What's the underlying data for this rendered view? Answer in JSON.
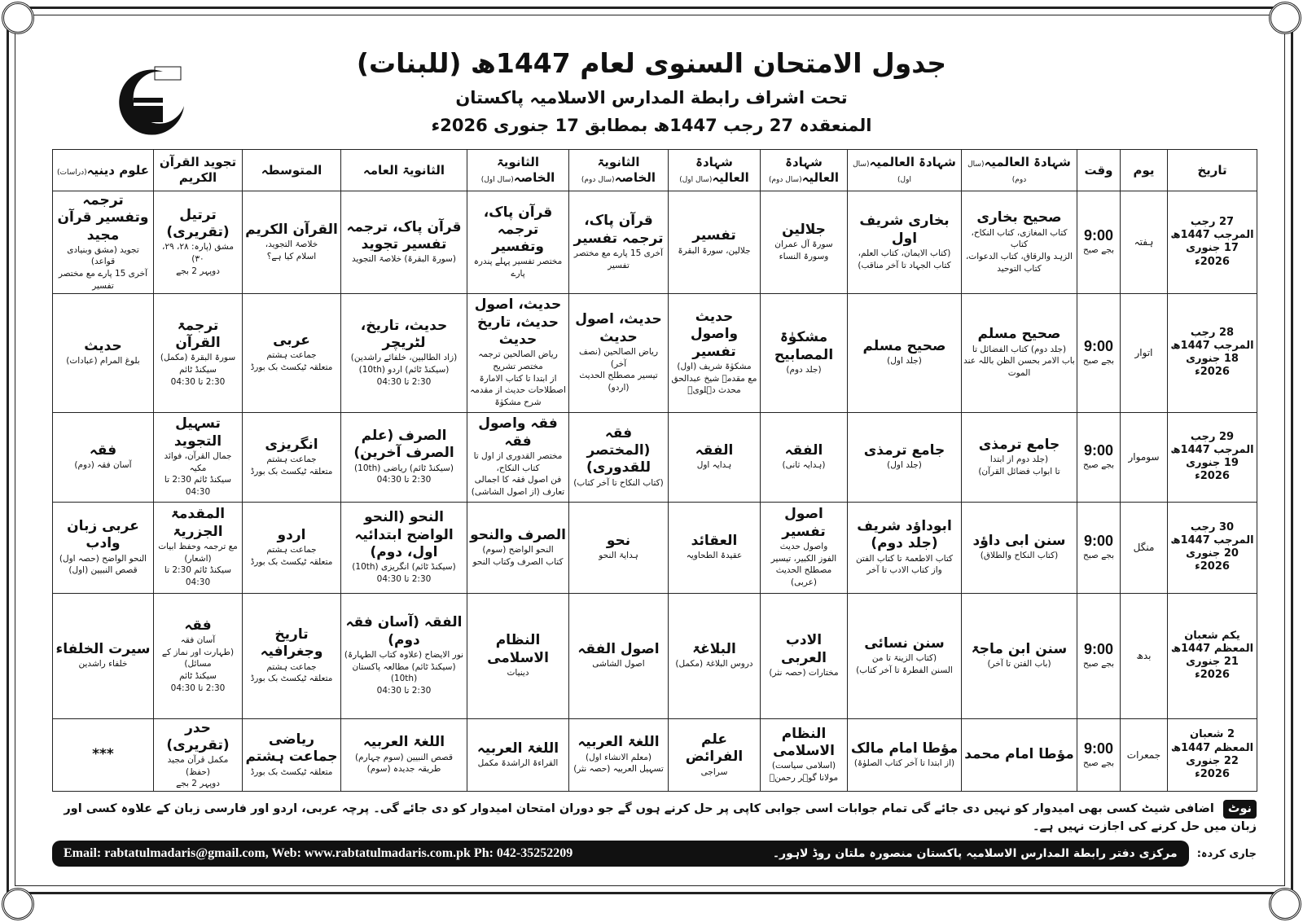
{
  "header": {
    "title": "جدول الامتحان السنوی لعام 1447ھ (للبنات)",
    "subtitle": "تحت اشراف رابطة المدارس الاسلامیہ پاکستان",
    "dateline": "المنعقدہ 27 رجب 1447ھ بمطابق 17 جنوری 2026ء"
  },
  "columns": [
    {
      "label": "تاریخ",
      "note": ""
    },
    {
      "label": "یوم",
      "note": ""
    },
    {
      "label": "وقت",
      "note": ""
    },
    {
      "label": "شہادۃ العالمیہ",
      "note": "(سال دوم)"
    },
    {
      "label": "شہادۃ العالمیہ",
      "note": "(سال اول)"
    },
    {
      "label": "شہادۃ العالیہ",
      "note": "(سال دوم)"
    },
    {
      "label": "شہادۃ العالیہ",
      "note": "(سال اول)"
    },
    {
      "label": "الثانویۃ الخاصہ",
      "note": "(سال دوم)"
    },
    {
      "label": "الثانویۃ الخاصہ",
      "note": "(سال اول)"
    },
    {
      "label": "الثانویۃ العامہ",
      "note": ""
    },
    {
      "label": "المتوسطہ",
      "note": ""
    },
    {
      "label": "تجوید القرآن الکریم",
      "note": ""
    },
    {
      "label": "علوم دینیہ",
      "note": "(دراسات)"
    }
  ],
  "rows": [
    {
      "date": [
        "27 رجب المرجب 1447ھ",
        "17 جنوری 2026ء"
      ],
      "day": "ہفتہ",
      "time": [
        "9:00",
        "بجے صبح"
      ],
      "cells": [
        [
          "صحیح بخاری",
          "کتاب المغازی، کتاب النکاح، کتاب",
          "الزہد والرقاق، کتاب الدعوات، کتاب التوحید"
        ],
        [
          "بخاری شریف اول",
          "(کتاب الایمان، کتاب العلم،",
          "کتاب الجہاد تا آخر مناقب)"
        ],
        [
          "جلالین",
          "سورۃ آل عمران",
          "وسورۃ النساء"
        ],
        [
          "تفسیر",
          "جلالین، سورۃ البقرۃ"
        ],
        [
          "قرآن پاک، ترجمہ تفسیر",
          "آخری 15 پارے مع مختصر تفسیر"
        ],
        [
          "قرآن پاک، ترجمہ وتفسیر",
          "مختصر تفسیر پہلے پندرہ پارے"
        ],
        [
          "قرآن پاک، ترجمہ تفسیر تجوید",
          "(سورۃ البقرۃ) خلاصۃ التجوید"
        ],
        [
          "القرآن الکریم",
          "خلاصۃ التجوید،",
          "اسلام کیا ہے؟"
        ],
        [
          "ترتیل (تقریری)",
          "مشق (پارہ: ۲۸، ۲۹، ۳۰)",
          "دوپہر 2 بجے"
        ],
        [
          "ترجمہ وتفسیر قرآن مجید",
          "تجوید (مشق وبنیادی قواعد)",
          "آخری 15 پارے مع مختصر تفسیر"
        ]
      ]
    },
    {
      "date": [
        "28 رجب المرجب 1447ھ",
        "18 جنوری 2026ء"
      ],
      "day": "اتوار",
      "time": [
        "9:00",
        "بجے صبح"
      ],
      "cells": [
        [
          "صحیح مسلم",
          "(جلد دوم) کتاب الفضائل تا",
          "باب الامر بحسن الظن باللہ عند الموت"
        ],
        [
          "صحیح مسلم",
          "(جلد اول)"
        ],
        [
          "مشکوٰۃ المصابیح",
          "(جلد دوم)"
        ],
        [
          "حدیث واصول تفسیر",
          "مشکوٰۃ شریف (اول)",
          "مع مقدمہ شیخ عبدالحق محدث دہلویؒ"
        ],
        [
          "حدیث، اصول حدیث",
          "ریاض الصالحین (نصف آخر)",
          "تیسیر مصطلح الحدیث (اردو)"
        ],
        [
          "حدیث، اصول حدیث، تاریخ حدیث",
          "ریاض الصالحین ترجمہ مختصر تشریح",
          "از ابتدا تا کتاب الامارۃ",
          "اصطلاحات حدیث از مقدمہ شرح مشکوٰۃ"
        ],
        [
          "حدیث، تاریخ، لٹریچر",
          "(زاد الطالبین، خلفائے راشدین)",
          "(سیکنڈ ٹائم) اردو (10th)",
          "2:30 تا 04:30"
        ],
        [
          "عربی",
          "جماعت ہشتم",
          "متعلقہ ٹیکسٹ بک بورڈ"
        ],
        [
          "ترجمۃ القرآن",
          "سورۃ البقرۃ (مکمل)",
          "سیکنڈ ٹائم",
          "2:30 تا 04:30"
        ],
        [
          "حدیث",
          "بلوغ المرام (عبادات)"
        ]
      ]
    },
    {
      "date": [
        "29 رجب المرجب 1447ھ",
        "19 جنوری 2026ء"
      ],
      "day": "سوموار",
      "time": [
        "9:00",
        "بجے صبح"
      ],
      "cells": [
        [
          "جامع ترمذی",
          "(جلد دوم از ابتدا",
          "تا ابواب فضائل القرآن)"
        ],
        [
          "جامع ترمذی",
          "(جلد اول)"
        ],
        [
          "الفقہ",
          "(ہدایہ ثانی)"
        ],
        [
          "الفقہ",
          "ہدایہ اول"
        ],
        [
          "فقہ (المختصر للقدوری)",
          "(کتاب النکاح تا آخر کتاب)"
        ],
        [
          "فقہ واصول فقہ",
          "مختصر القدوری از اول تا کتاب النکاح،",
          "فن اصول فقہ کا اجمالی تعارف (از اصول الشاشی)"
        ],
        [
          "الصرف (علم الصرف آخرین)",
          "(سیکنڈ ٹائم) ریاضی (10th)",
          "2:30 تا 04:30"
        ],
        [
          "انگریزی",
          "جماعت ہشتم",
          "متعلقہ ٹیکسٹ بک بورڈ"
        ],
        [
          "تسہیل التجوید",
          "جمال القرآن، فوائد مکیہ",
          "سیکنڈ ٹائم 2:30 تا 04:30"
        ],
        [
          "فقہ",
          "آسان فقہ (دوم)"
        ]
      ]
    },
    {
      "date": [
        "30 رجب المرجب 1447ھ",
        "20 جنوری 2026ء"
      ],
      "day": "منگل",
      "time": [
        "9:00",
        "بجے صبح"
      ],
      "cells": [
        [
          "سنن ابی داؤد",
          "(کتاب النکاح والطلاق)"
        ],
        [
          "ابوداؤد شریف (جلد دوم)",
          "کتاب الاطعمۃ تا کتاب الفتن",
          "واز کتاب الادب تا آخر"
        ],
        [
          "اصول تفسیر",
          "واصول حدیث",
          "الفوز الکبیر، تیسیر مصطلح الحدیث (عربی)"
        ],
        [
          "العقائد",
          "عقیدۃ الطحاویہ"
        ],
        [
          "نحو",
          "ہدایۃ النحو"
        ],
        [
          "الصرف والنحو",
          "النحو الواضح (سوم)",
          "کتاب الصرف وکتاب النحو"
        ],
        [
          "النحو (النحو الواضح ابتدائیہ اول، دوم)",
          "(سیکنڈ ٹائم) انگریزی (10th)",
          "2:30 تا 04:30"
        ],
        [
          "اردو",
          "جماعت ہشتم",
          "متعلقہ ٹیکسٹ بک بورڈ"
        ],
        [
          "المقدمۃ الجزریۃ",
          "مع ترجمہ وحفظ ابیات (اشعار)",
          "سیکنڈ ٹائم 2:30 تا 04:30"
        ],
        [
          "عربی زبان وادب",
          "النحو الواضح (حصہ اول)",
          "قصص النبیین (اول)"
        ]
      ]
    },
    {
      "date": [
        "یکم شعبان المعظم 1447ھ",
        "21 جنوری 2026ء"
      ],
      "day": "بدھ",
      "time": [
        "9:00",
        "بجے صبح"
      ],
      "cells": [
        [
          "سنن ابن ماجۃ",
          "(باب الفتن تا آخر)"
        ],
        [
          "سنن نسائی",
          "(کتاب الزینۃ تا من",
          "السنن الفطرۃ تا آخر کتاب)"
        ],
        [
          "الادب العربی",
          "مختارات (حصہ نثر)"
        ],
        [
          "البلاغۃ",
          "دروس البلاغۃ (مکمل)"
        ],
        [
          "اصول الفقہ",
          "اصول الشاشی"
        ],
        [
          "النظام الاسلامی",
          "دینیات"
        ],
        [
          "الفقہ (آسان فقہ دوم)",
          "نور الایضاح (علاوہ کتاب الطہارۃ)",
          "(سیکنڈ ٹائم) مطالعہ پاکستان (10th)",
          "2:30 تا 04:30"
        ],
        [
          "تاریخ وجغرافیہ",
          "جماعت ہشتم",
          "متعلقہ ٹیکسٹ بک بورڈ"
        ],
        [
          "فقہ",
          "آسان فقہ",
          "(طہارت اور نماز کے مسائل)",
          "سیکنڈ ٹائم",
          "2:30 تا 04:30"
        ],
        [
          "سیرت الخلفاء",
          "خلفاء راشدین"
        ]
      ]
    },
    {
      "date": [
        "2 شعبان المعظم 1447ھ",
        "22 جنوری 2026ء"
      ],
      "day": "جمعرات",
      "time": [
        "9:00",
        "بجے صبح"
      ],
      "cells": [
        [
          "مؤطا امام محمد"
        ],
        [
          "مؤطا امام مالک",
          "(از ابتدا تا آخر کتاب الصلوٰۃ)"
        ],
        [
          "النظام الاسلامی",
          "(اسلامی سیاست) مولانا گوہر رحمنؒ"
        ],
        [
          "علم الفرائض",
          "سراجی"
        ],
        [
          "اللغۃ العربیہ",
          "(معلم الانشاء اول)",
          "تسہیل العربیہ (حصہ نثر)"
        ],
        [
          "اللغۃ العربیہ",
          "القراءۃ الراشدۃ مکمل"
        ],
        [
          "اللغۃ العربیہ",
          "قصص النبیین (سوم چہارم)",
          "طریقہ جدیدہ (سوم)"
        ],
        [
          "ریاضی جماعت ہشتم",
          "متعلقہ ٹیکسٹ بک بورڈ"
        ],
        [
          "حدر (تقریری)",
          "مکمل قرآن مجید (حفظ)",
          "دوپہر 2 بجے"
        ],
        [
          "***"
        ]
      ]
    }
  ],
  "note": {
    "badge": "نوٹ",
    "text": "اضافی شیٹ کسی بھی امیدوار کو نہیں دی جائے گی تمام جوابات اسی جوابی کاپی پر حل کرنے ہوں گے جو دوران امتحان امیدوار کو دی جائے گی۔ پرچہ عربی، اردو اور فارسی زبان کے علاوہ کسی اور زبان میں حل کرنے کی اجازت نہیں ہے۔"
  },
  "footer": {
    "issuer": "جاری کردہ:",
    "address": "مرکزی دفتر رابطة المدارس الاسلامیہ پاکستان منصورہ ملتان روڈ لاہور۔",
    "contact": "Email: rabtatulmadaris@gmail.com, Web: www.rabtatulmadaris.com.pk  Ph: 042-35252209"
  }
}
